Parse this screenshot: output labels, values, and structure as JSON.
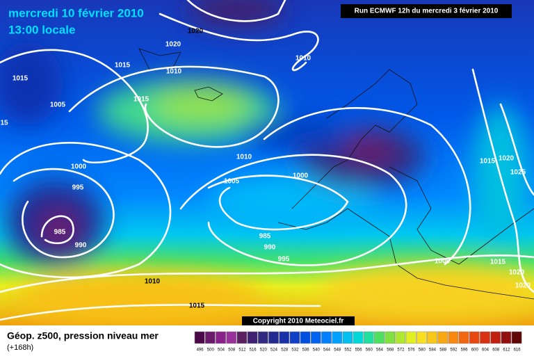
{
  "header": {
    "date": "mercredi 10 février 2010",
    "time": "13:00 locale",
    "run": "Run ECMWF 12h du mercredi 3 février 2010"
  },
  "isobar_labels": [
    "1020",
    "1020",
    "1015",
    "1010",
    "1010",
    "1015",
    "1015",
    "1005",
    "15",
    "1000",
    "995",
    "985",
    "990",
    "1010",
    "1005",
    "1000",
    "985",
    "990",
    "995",
    "1010",
    "1015",
    "1000",
    "1015",
    "1020",
    "1025",
    "1015",
    "1020",
    "1020"
  ],
  "copyright": "Copyright 2010 Meteociel.fr",
  "legend": {
    "title": "Géop. z500, pression niveau mer",
    "subtitle": "(+168h)",
    "values": [
      496,
      500,
      504,
      508,
      512,
      516,
      520,
      524,
      528,
      532,
      536,
      540,
      544,
      548,
      552,
      556,
      560,
      564,
      568,
      572,
      576,
      580,
      584,
      588,
      592,
      596,
      600,
      604,
      608,
      612,
      616
    ],
    "colors": [
      "#4a0a4a",
      "#6a1a6a",
      "#8a208a",
      "#9a309a",
      "#5a2060",
      "#402070",
      "#302a80",
      "#202a90",
      "#1a30a8",
      "#1040c8",
      "#0050e0",
      "#0064f0",
      "#0080ff",
      "#00a0ff",
      "#00c0f0",
      "#00d8d8",
      "#20e0a0",
      "#50e060",
      "#80e040",
      "#b0e830",
      "#e0f020",
      "#f8e020",
      "#f8c818",
      "#f8a810",
      "#f88810",
      "#f06810",
      "#e84810",
      "#d83010",
      "#c02010",
      "#901010",
      "#600808"
    ]
  }
}
